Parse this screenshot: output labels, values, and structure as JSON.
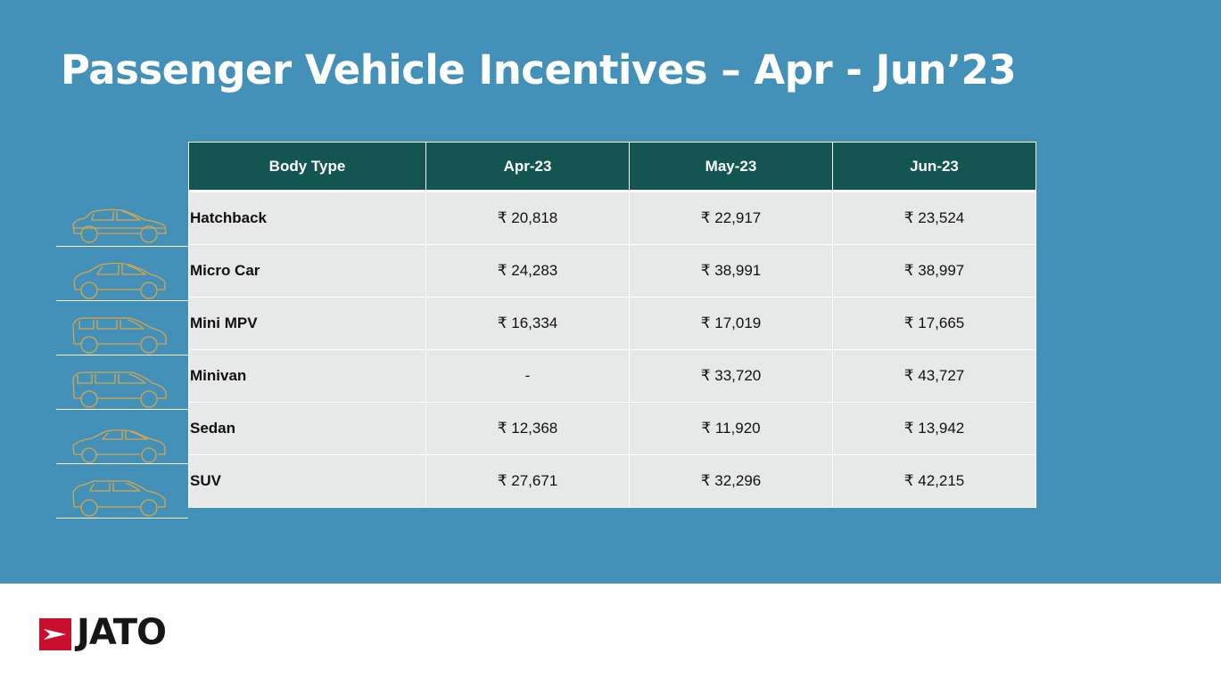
{
  "slide": {
    "title": "Passenger Vehicle Incentives – Apr - Jun’23",
    "accent_color": "#4391b9",
    "header_color": "#125551",
    "row_color": "#e7e8e8",
    "icon_color": "#d9a54a"
  },
  "chart_data": {
    "type": "table",
    "columns": [
      "Body Type",
      "Apr-23",
      "May-23",
      "Jun-23"
    ],
    "rows": [
      {
        "body_type": "Hatchback",
        "icon": "hatchback-car-icon",
        "values": [
          "₹ 20,818",
          "₹ 22,917",
          "₹ 23,524"
        ]
      },
      {
        "body_type": "Micro Car",
        "icon": "micro-car-icon",
        "values": [
          "₹ 24,283",
          "₹ 38,991",
          "₹ 38,997"
        ]
      },
      {
        "body_type": "Mini MPV",
        "icon": "mini-mpv-car-icon",
        "values": [
          "₹ 16,334",
          "₹ 17,019",
          "₹ 17,665"
        ]
      },
      {
        "body_type": "Minivan",
        "icon": "minivan-car-icon",
        "values": [
          "-",
          "₹ 33,720",
          "₹ 43,727"
        ]
      },
      {
        "body_type": "Sedan",
        "icon": "sedan-car-icon",
        "values": [
          "₹ 12,368",
          "₹ 11,920",
          "₹ 13,942"
        ]
      },
      {
        "body_type": "SUV",
        "icon": "suv-car-icon",
        "values": [
          "₹ 27,671",
          "₹ 32,296",
          "₹ 42,215"
        ]
      }
    ]
  },
  "footer": {
    "logo_text": "JATO",
    "logo_icon": "jato-logo-icon",
    "logo_color": "#c8102e"
  }
}
